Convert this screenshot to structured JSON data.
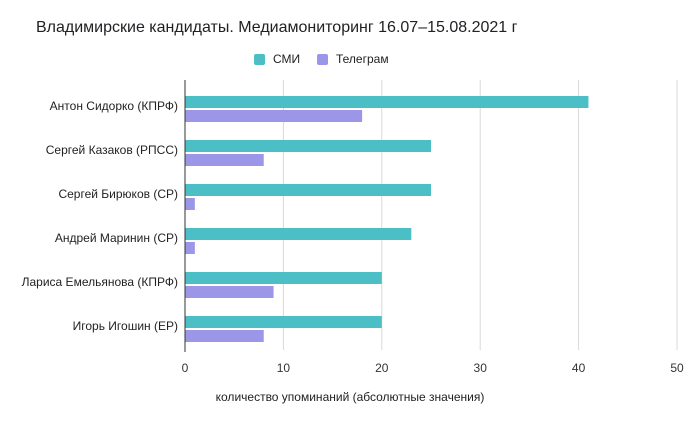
{
  "colors": {
    "smi": "#4bbfc5",
    "telegram": "#9b96e8",
    "grid": "#d9d9d9",
    "axis": "#333333"
  },
  "chart_data": {
    "type": "bar",
    "orientation": "horizontal",
    "title": "Владимирские кандидаты. Медиамониторинг 16.07–15.08.2021 г",
    "xlabel": "количество упоминаний (абсолютные значения)",
    "ylabel": "",
    "xlim": [
      0,
      50
    ],
    "xticks": [
      0,
      10,
      20,
      30,
      40,
      50
    ],
    "grid": true,
    "legend_position": "top",
    "categories": [
      "Антон Сидорко (КПРФ)",
      "Сергей Казаков (РПСС)",
      "Сергей Бирюков (СР)",
      "Андрей Маринин (СР)",
      "Лариса Емельянова (КПРФ)",
      "Игорь Игошин (ЕР)"
    ],
    "series": [
      {
        "name": "СМИ",
        "color": "#4bbfc5",
        "values": [
          41,
          25,
          25,
          23,
          20,
          20
        ]
      },
      {
        "name": "Телеграм",
        "color": "#9b96e8",
        "values": [
          18,
          8,
          1,
          1,
          9,
          8
        ]
      }
    ]
  }
}
